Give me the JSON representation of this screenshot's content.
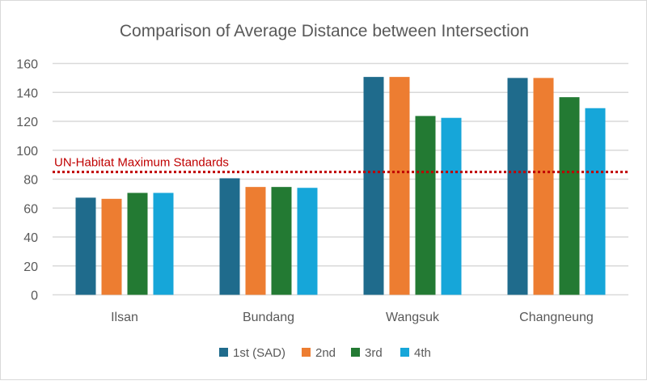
{
  "chart_data": {
    "type": "bar",
    "title": "Comparison of Average Distance between Intersection",
    "xlabel": "",
    "ylabel": "",
    "categories": [
      "Ilsan",
      "Bundang",
      "Wangsuk",
      "Changneung"
    ],
    "series": [
      {
        "name": "1st (SAD)",
        "color": "#1f6b8c",
        "values": [
          67.2,
          80.6,
          150.7,
          150.0
        ]
      },
      {
        "name": "2nd",
        "color": "#ed7d31",
        "values": [
          66.4,
          74.6,
          150.7,
          150.0
        ]
      },
      {
        "name": "3rd",
        "color": "#237a33",
        "values": [
          70.5,
          74.6,
          123.7,
          136.7
        ]
      },
      {
        "name": "4th",
        "color": "#16a6d9",
        "values": [
          70.5,
          74.0,
          122.4,
          129.1
        ]
      }
    ],
    "ylim": [
      0,
      160
    ],
    "yticks": [
      0,
      20,
      40,
      60,
      80,
      100,
      120,
      140,
      160
    ],
    "grid": true,
    "legend_position": "bottom",
    "reference_line": {
      "label": "UN-Habitat Maximum Standards",
      "value": 85,
      "color": "#c00000",
      "style": "dotted"
    }
  }
}
